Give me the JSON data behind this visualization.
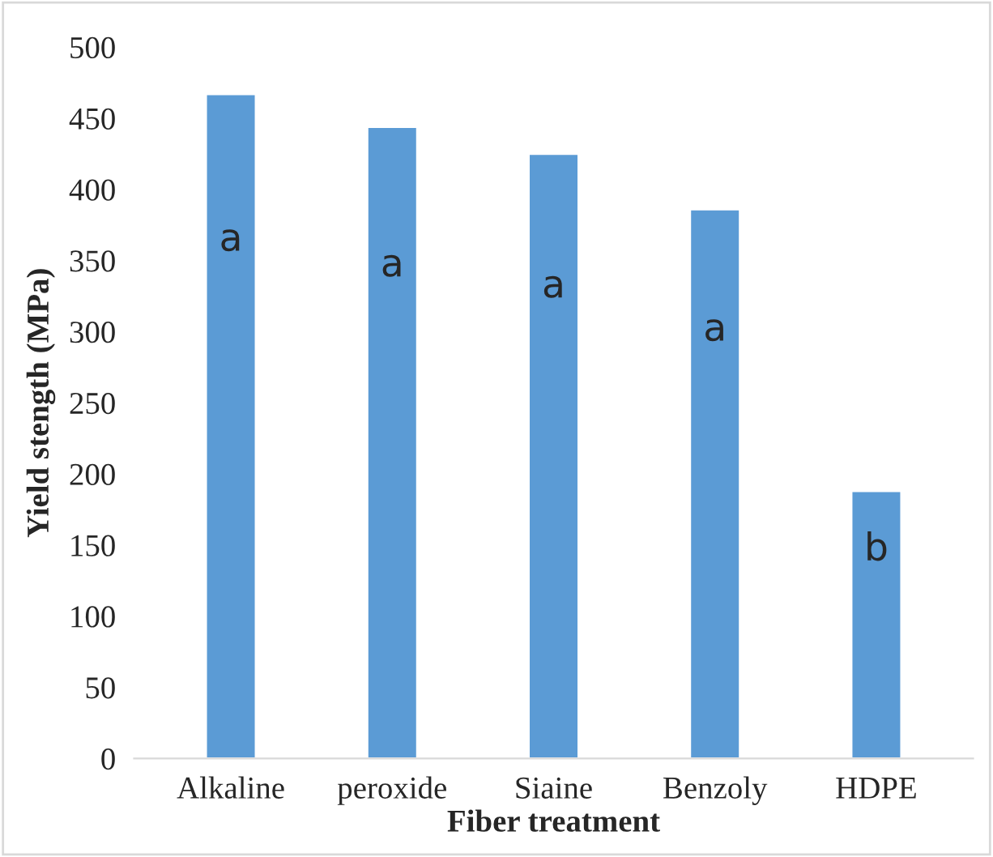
{
  "chart_data": {
    "type": "bar",
    "xlabel": "Fiber treatment",
    "ylabel": "Yield stength (MPa)",
    "categories": [
      "Alkaline",
      "peroxide",
      "Siaine",
      "Benzoly",
      "HDPE"
    ],
    "values": [
      467,
      444,
      425,
      386,
      188
    ],
    "color": "#5b9bd5",
    "ylim": [
      0,
      500
    ],
    "yticks": [
      0,
      50,
      100,
      150,
      200,
      250,
      300,
      350,
      400,
      450,
      500
    ],
    "grid": false,
    "value_labels": [
      "a",
      "a",
      "a",
      "a",
      "b"
    ]
  }
}
